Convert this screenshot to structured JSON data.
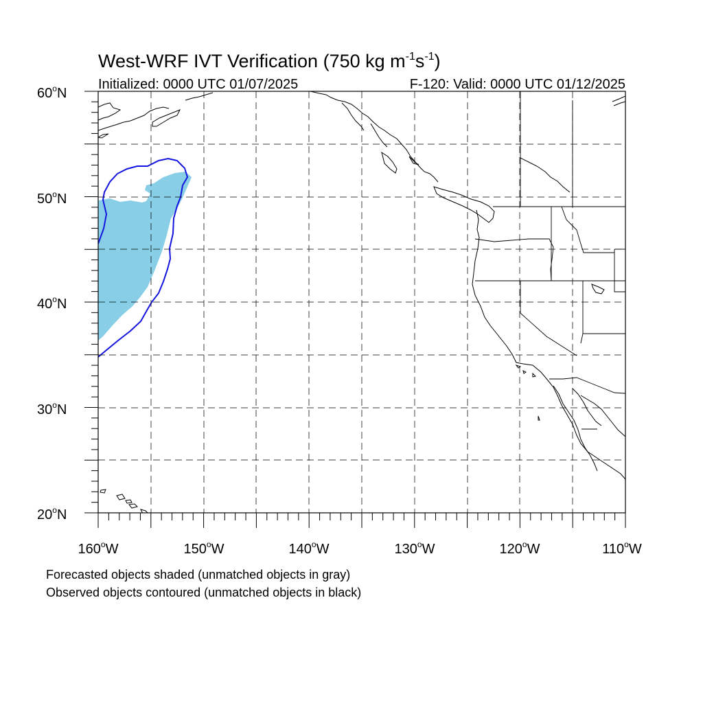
{
  "title": {
    "main": "West-WRF IVT Verification (750 kg m",
    "sup1": "-1",
    "s": "s",
    "sup2": "-1",
    "close": ")"
  },
  "subtitle_left": "Initialized: 0000 UTC 01/07/2025",
  "subtitle_right": "F-120: Valid: 0000 UTC 01/12/2025",
  "lat_labels": [
    {
      "deg": "60",
      "hemi": "N"
    },
    {
      "deg": "50",
      "hemi": "N"
    },
    {
      "deg": "40",
      "hemi": "N"
    },
    {
      "deg": "30",
      "hemi": "N"
    },
    {
      "deg": "20",
      "hemi": "N"
    }
  ],
  "lon_labels": [
    {
      "deg": "160",
      "hemi": "W"
    },
    {
      "deg": "150",
      "hemi": "W"
    },
    {
      "deg": "140",
      "hemi": "W"
    },
    {
      "deg": "130",
      "hemi": "W"
    },
    {
      "deg": "120",
      "hemi": "W"
    },
    {
      "deg": "110",
      "hemi": "W"
    }
  ],
  "degree_symbol": "o",
  "footnote_1": "Forecasted objects shaded (unmatched objects in gray)",
  "footnote_2": "Observed objects contoured (unmatched objects in black)",
  "map": {
    "lon_min": -160,
    "lon_max": -110,
    "lat_min": 20,
    "lat_max": 60,
    "forecast_color": "#87CEE6",
    "observed_color": "#1414E0"
  }
}
